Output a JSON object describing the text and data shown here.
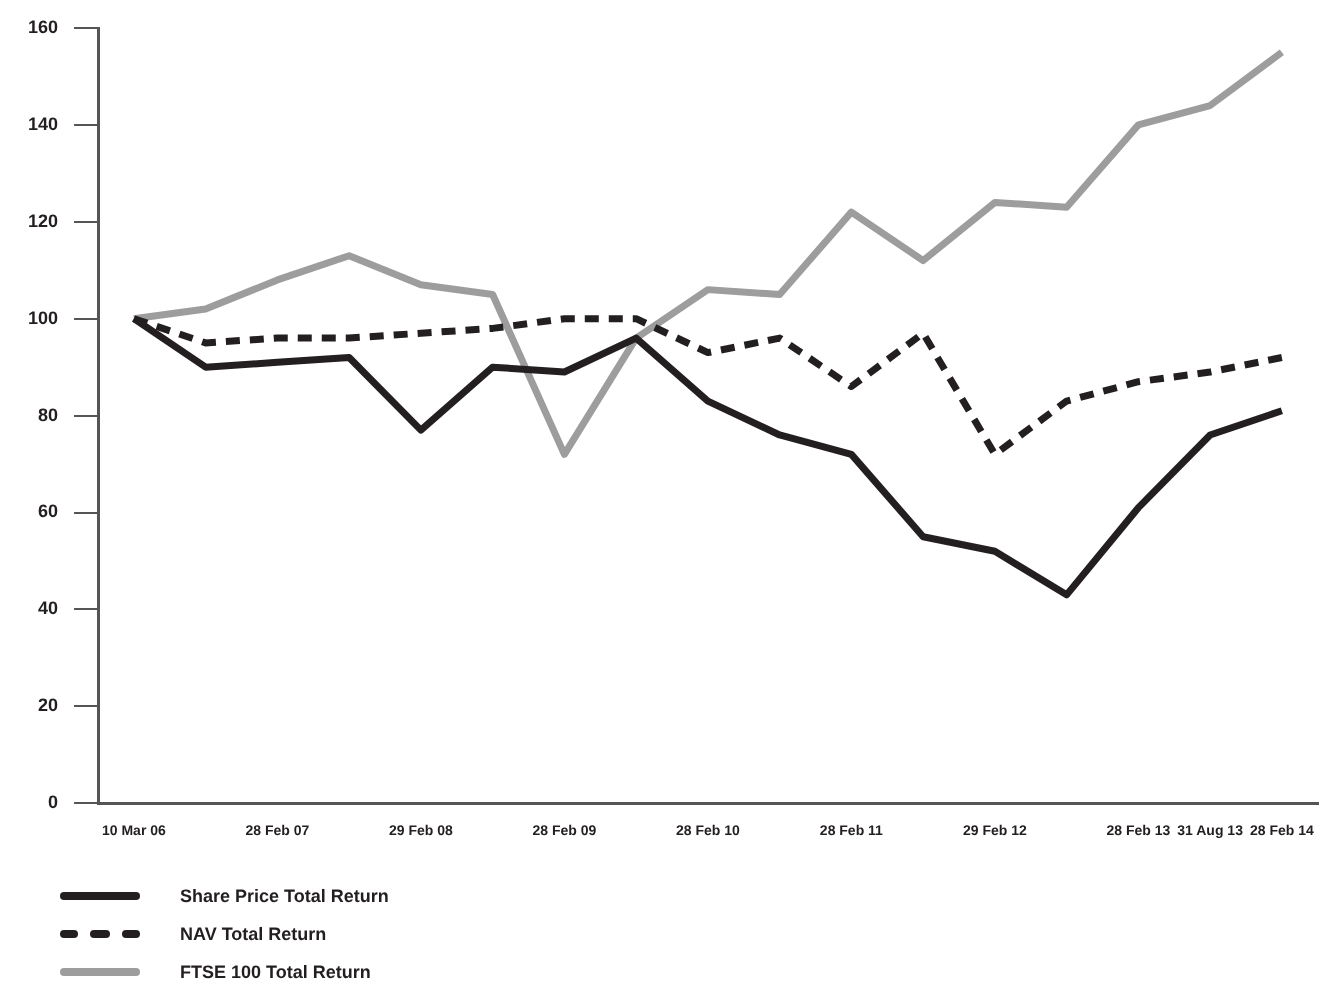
{
  "chart_data": {
    "type": "line",
    "categories": [
      "10 Mar 06",
      null,
      "28 Feb 07",
      null,
      "29 Feb 08",
      null,
      "28 Feb 09",
      null,
      "28 Feb 10",
      null,
      "28 Feb 11",
      null,
      "29 Feb 12",
      null,
      "28 Feb 13",
      "31 Aug 13",
      "28 Feb 14"
    ],
    "ylim": [
      0,
      160
    ],
    "yticks": [
      0,
      20,
      40,
      60,
      80,
      100,
      120,
      140,
      160
    ],
    "grid": false,
    "legend": "bottom left",
    "marker": "none",
    "series": [
      {
        "name": "Share Price Total Return",
        "color": "#231f20",
        "line_style": "solid",
        "values": [
          100,
          90,
          91,
          92,
          77,
          90,
          89,
          96,
          83,
          76,
          72,
          55,
          52,
          43,
          61,
          76,
          81
        ]
      },
      {
        "name": "NAV Total Return",
        "color": "#231f20",
        "line_style": "dashed",
        "values": [
          100,
          95,
          96,
          96,
          97,
          98,
          100,
          100,
          93,
          96,
          86,
          97,
          72,
          83,
          87,
          89,
          92
        ]
      },
      {
        "name": "FTSE 100 Total Return",
        "color": "#9d9d9d",
        "line_style": "solid",
        "values": [
          100,
          102,
          108,
          113,
          107,
          105,
          72,
          96,
          106,
          105,
          122,
          112,
          124,
          123,
          140,
          144,
          155
        ]
      }
    ]
  }
}
